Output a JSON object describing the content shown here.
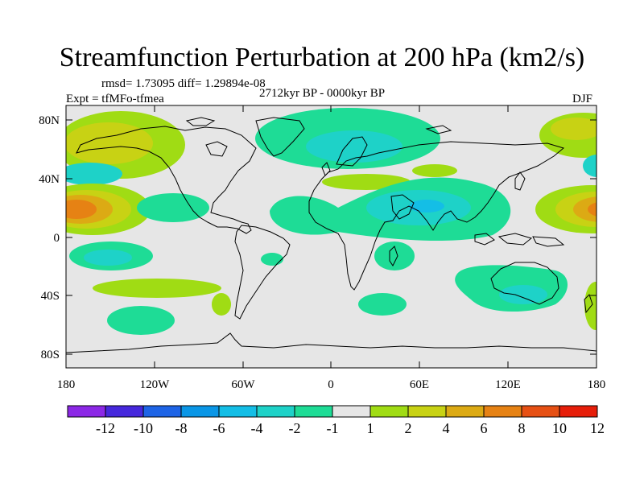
{
  "title": "Streamfunction Perturbation at 200 hPa (km2/s)",
  "stats": "rmsd= 1.73095 diff= 1.29894e-08",
  "period": "2712kyr BP - 0000kyr BP",
  "experiment": "Expt = tfMFo-tfmea",
  "season": "DJF",
  "map": {
    "projection": "cylindrical equidistant",
    "lon_range": [
      -180,
      180
    ],
    "lat_range": [
      -90,
      90
    ],
    "x_ticks": [
      "180",
      "120W",
      "60W",
      "0",
      "60E",
      "120E",
      "180"
    ],
    "y_ticks": [
      "80N",
      "40N",
      "0",
      "40S",
      "80S"
    ]
  },
  "colorbar": {
    "levels": [
      "-12",
      "-10",
      "-8",
      "-6",
      "-4",
      "-2",
      "-1",
      "1",
      "2",
      "4",
      "6",
      "8",
      "10",
      "12"
    ],
    "colors": [
      "#8c28e6",
      "#4628dc",
      "#1e64e6",
      "#0a96e6",
      "#14bee6",
      "#1ed2c8",
      "#1edc96",
      "#e6e6e6",
      "#a0dc14",
      "#c8d214",
      "#dcaa14",
      "#e68214",
      "#e65014",
      "#e61e0a"
    ]
  }
}
